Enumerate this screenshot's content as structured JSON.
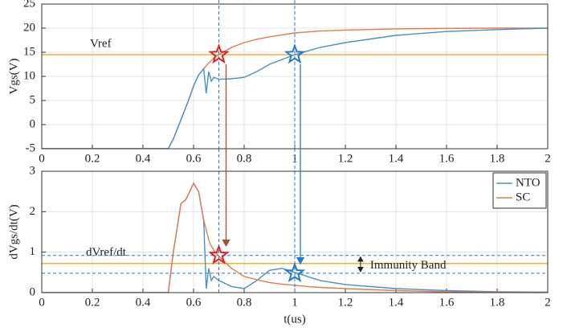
{
  "chart_data": [
    {
      "type": "line",
      "ylabel": "Vgs(V)",
      "x": [
        0,
        0.5,
        0.52,
        0.55,
        0.58,
        0.6,
        0.62,
        0.64,
        0.65,
        0.66,
        0.67,
        0.68,
        0.7,
        0.75,
        0.8,
        0.85,
        0.9,
        1.0,
        1.1,
        1.2,
        1.4,
        1.6,
        1.8,
        2.0
      ],
      "series": [
        {
          "color": "#e07b50",
          "values": [
            -5,
            -5,
            -3,
            1,
            5,
            8,
            10.3,
            11.6,
            12.2,
            12.8,
            13.3,
            13.8,
            14.5,
            16,
            17,
            17.7,
            18.2,
            19,
            19.4,
            19.6,
            19.85,
            19.95,
            20,
            20
          ]
        },
        {
          "color": "#4a90c8",
          "values": [
            -5,
            -5,
            -3,
            1,
            5,
            8,
            10.3,
            11.6,
            6.5,
            11,
            9,
            9.8,
            9.4,
            9.5,
            9.8,
            11,
            12.5,
            14.5,
            16,
            17,
            18.5,
            19.3,
            19.7,
            20
          ]
        }
      ],
      "xlim": [
        0,
        2
      ],
      "xticks": [
        0,
        0.2,
        0.4,
        0.6,
        0.8,
        1,
        1.2,
        1.4,
        1.6,
        1.8,
        2
      ],
      "ylim": [
        -5,
        25
      ],
      "yticks": [
        -5,
        0,
        5,
        10,
        15,
        20,
        25
      ],
      "grid": true,
      "reference_lines": [
        {
          "value": 14.5,
          "label": "Vref",
          "color": "#f0b030"
        }
      ],
      "vlines": [
        0.7,
        1.0
      ],
      "markers": [
        {
          "x": 0.7,
          "y": 14.5,
          "color": "#e02020"
        },
        {
          "x": 1.0,
          "y": 14.5,
          "color": "#2a78c8"
        }
      ]
    },
    {
      "type": "line",
      "xlabel": "t(us)",
      "ylabel": "dVgs/dt(V)",
      "x": [
        0,
        0.5,
        0.52,
        0.55,
        0.57,
        0.6,
        0.62,
        0.64,
        0.65,
        0.66,
        0.67,
        0.68,
        0.7,
        0.75,
        0.8,
        0.85,
        0.9,
        0.95,
        1.0,
        1.05,
        1.1,
        1.2,
        1.4,
        1.6,
        1.8,
        2.0
      ],
      "series": [
        {
          "name": "NTO",
          "color": "#4a90c8",
          "values": [
            0,
            0,
            1,
            2.2,
            2.3,
            2.7,
            2.5,
            1.8,
            0.1,
            0.6,
            0.3,
            0.4,
            0.3,
            0.15,
            0.1,
            0.3,
            0.55,
            0.6,
            0.5,
            0.4,
            0.3,
            0.2,
            0.1,
            0.05,
            0.02,
            0.01
          ]
        },
        {
          "name": "SC",
          "color": "#e07b50",
          "values": [
            0,
            0,
            1,
            2.2,
            2.3,
            2.7,
            2.5,
            1.8,
            1.55,
            1.3,
            1.15,
            1.05,
            0.9,
            0.6,
            0.4,
            0.32,
            0.25,
            0.21,
            0.18,
            0.15,
            0.13,
            0.1,
            0.05,
            0.02,
            0.01,
            0
          ]
        }
      ],
      "xlim": [
        0,
        2
      ],
      "xticks": [
        0,
        0.2,
        0.4,
        0.6,
        0.8,
        1,
        1.2,
        1.4,
        1.6,
        1.8,
        2
      ],
      "ylim": [
        0,
        3
      ],
      "yticks": [
        0,
        1,
        2,
        3
      ],
      "grid": true,
      "legend": "upper right",
      "reference_lines": [
        {
          "value": 0.72,
          "label": "dVref/dt",
          "color": "#f0b030"
        }
      ],
      "band": [
        0.48,
        0.92
      ],
      "band_color": "#2a78c8",
      "band_label": "Immunity Band",
      "vlines": [
        0.7,
        1.0
      ],
      "markers": [
        {
          "x": 0.7,
          "y": 0.92,
          "color": "#e02020"
        },
        {
          "x": 1.0,
          "y": 0.48,
          "color": "#2a78c8"
        }
      ]
    }
  ]
}
